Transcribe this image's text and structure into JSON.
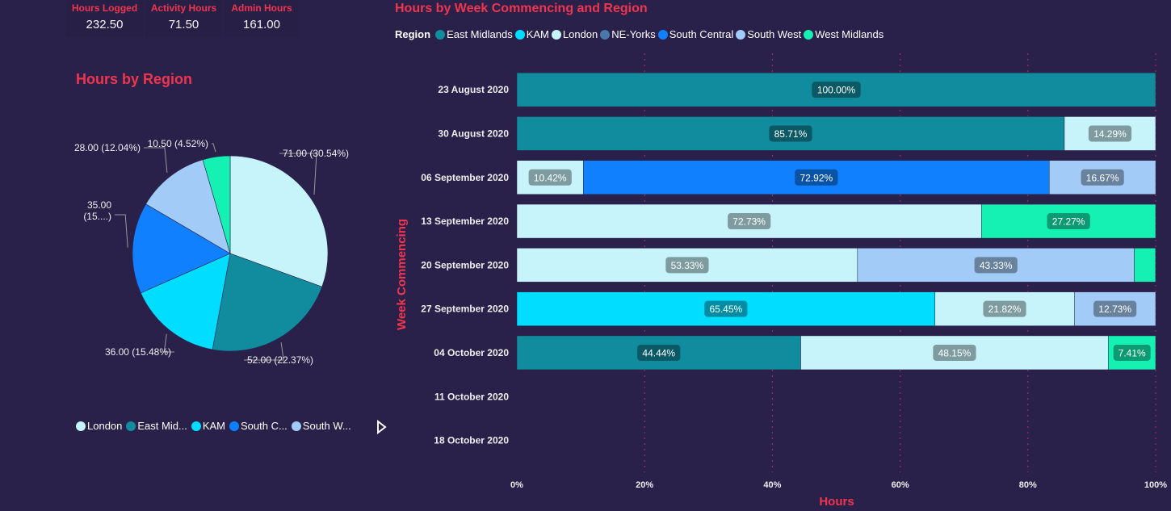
{
  "cards": [
    {
      "title": "Hours Logged",
      "value": "232.50"
    },
    {
      "title": "Activity Hours",
      "value": "71.50"
    },
    {
      "title": "Admin Hours",
      "value": "161.00"
    }
  ],
  "colors": {
    "East Midlands": "#118c9e",
    "KAM": "#00ddff",
    "London": "#c6f4fa",
    "NE-Yorks": "#4a77a8",
    "South Central": "#1180ff",
    "South West": "#a3cbf8",
    "West Midlands": "#14f1b2",
    "title": "#f0354f",
    "background": "#2a214a"
  },
  "chart_data": [
    {
      "type": "pie",
      "title": "Hours by Region",
      "slices": [
        {
          "name": "London",
          "value": 71.0,
          "label": "71.00 (30.54%)"
        },
        {
          "name": "East Midlands",
          "value": 52.0,
          "label": "52.00 (22.37%)"
        },
        {
          "name": "KAM",
          "value": 36.0,
          "label": "36.00 (15.48%)"
        },
        {
          "name": "South Central",
          "value": 35.0,
          "label": "35.00 (15....)"
        },
        {
          "name": "South West",
          "value": 28.0,
          "label": "28.00 (12.04%)"
        },
        {
          "name": "West Midlands",
          "value": 10.5,
          "label": "10.50 (4.52%)"
        }
      ],
      "legend": [
        "London",
        "East Mid...",
        "KAM",
        "South C...",
        "South W..."
      ],
      "legend_placement": "bottom"
    },
    {
      "type": "bar",
      "stacked": "100%",
      "orientation": "horizontal",
      "title": "Hours by Week Commencing and Region",
      "xlabel": "Hours",
      "ylabel": "Week Commencing",
      "legend_title": "Region",
      "legend_placement": "top-left",
      "series_names": [
        "East Midlands",
        "KAM",
        "London",
        "NE-Yorks",
        "South Central",
        "South West",
        "West Midlands"
      ],
      "xticks": [
        "0%",
        "20%",
        "40%",
        "60%",
        "80%",
        "100%"
      ],
      "xlim": [
        0,
        100
      ],
      "grid": true,
      "categories": [
        "23 August 2020",
        "30 August 2020",
        "06 September 2020",
        "13 September 2020",
        "20 September 2020",
        "27 September 2020",
        "04 October 2020",
        "11 October 2020",
        "18 October 2020"
      ],
      "rows": [
        [
          {
            "s": "East Midlands",
            "v": 100.0,
            "label": "100.00%"
          }
        ],
        [
          {
            "s": "East Midlands",
            "v": 85.71,
            "label": "85.71%"
          },
          {
            "s": "London",
            "v": 14.29,
            "label": "14.29%"
          }
        ],
        [
          {
            "s": "London",
            "v": 10.42,
            "label": "10.42%"
          },
          {
            "s": "South Central",
            "v": 72.92,
            "label": "72.92%"
          },
          {
            "s": "South West",
            "v": 16.67,
            "label": "16.67%"
          }
        ],
        [
          {
            "s": "London",
            "v": 72.73,
            "label": "72.73%"
          },
          {
            "s": "West Midlands",
            "v": 27.27,
            "label": "27.27%"
          }
        ],
        [
          {
            "s": "London",
            "v": 53.33,
            "label": "53.33%"
          },
          {
            "s": "South West",
            "v": 43.33,
            "label": "43.33%"
          },
          {
            "s": "West Midlands",
            "v": 3.33
          }
        ],
        [
          {
            "s": "KAM",
            "v": 65.45,
            "label": "65.45%"
          },
          {
            "s": "London",
            "v": 21.82,
            "label": "21.82%"
          },
          {
            "s": "South West",
            "v": 12.73,
            "label": "12.73%"
          }
        ],
        [
          {
            "s": "East Midlands",
            "v": 44.44,
            "label": "44.44%"
          },
          {
            "s": "London",
            "v": 48.15,
            "label": "48.15%"
          },
          {
            "s": "West Midlands",
            "v": 7.41,
            "label": "7.41%"
          }
        ],
        [],
        []
      ]
    }
  ]
}
